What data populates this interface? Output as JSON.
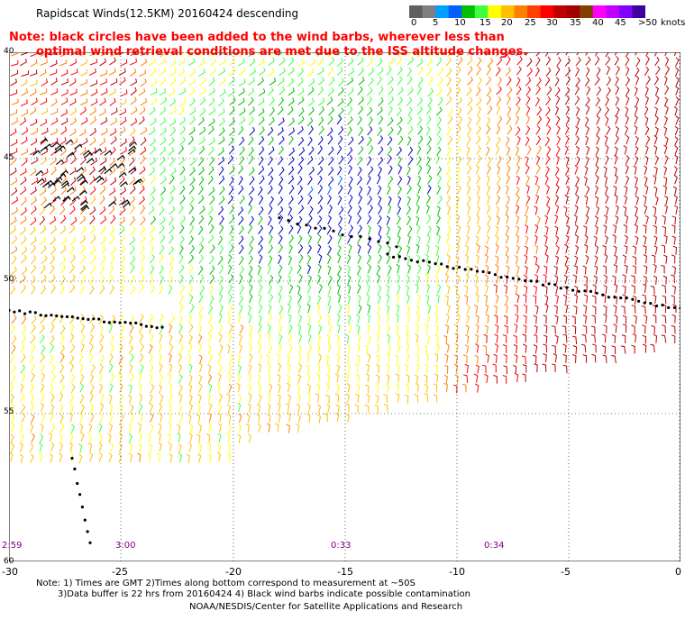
{
  "title": "Rapidscat Winds(12.5KM) 20160424 descending",
  "note": {
    "line1": "Note: black circles have been added to the wind barbs, wherever less than",
    "line2": "optimal wind retrieval conditions are met due to the ISS altitude changes."
  },
  "colorbar": {
    "labels": [
      "0",
      "5",
      "10",
      "15",
      "20",
      "25",
      "30",
      "35",
      "40",
      "45",
      ">50"
    ],
    "unit": "knots",
    "colors": [
      "#606060",
      "#808080",
      "#00a0ff",
      "#0060ff",
      "#00c000",
      "#40ff40",
      "#ffff00",
      "#ffc000",
      "#ff8000",
      "#ff4000",
      "#ff0000",
      "#c00000",
      "#a00000",
      "#804000",
      "#ff00ff",
      "#c000ff",
      "#8000ff",
      "#4000a0"
    ]
  },
  "map": {
    "x_ticks": [
      "-30",
      "-25",
      "-20",
      "-15",
      "-10",
      "-5",
      "0"
    ],
    "y_labels": [
      "40",
      "45",
      "50",
      "55",
      "60"
    ],
    "times": [
      {
        "label": "2:59"
      },
      {
        "label": "3:00"
      },
      {
        "label": "0:33"
      },
      {
        "label": "0:34"
      }
    ]
  },
  "footnote": {
    "line1": "Note: 1) Times are GMT 2)Times along bottom correspond to measurement at ~50S",
    "line2": "3)Data buffer is 22 hrs from 20160424 4) Black wind barbs indicate possible contamination"
  },
  "credit": "NOAA/NESDIS/Center for Satellite Applications and Research"
}
